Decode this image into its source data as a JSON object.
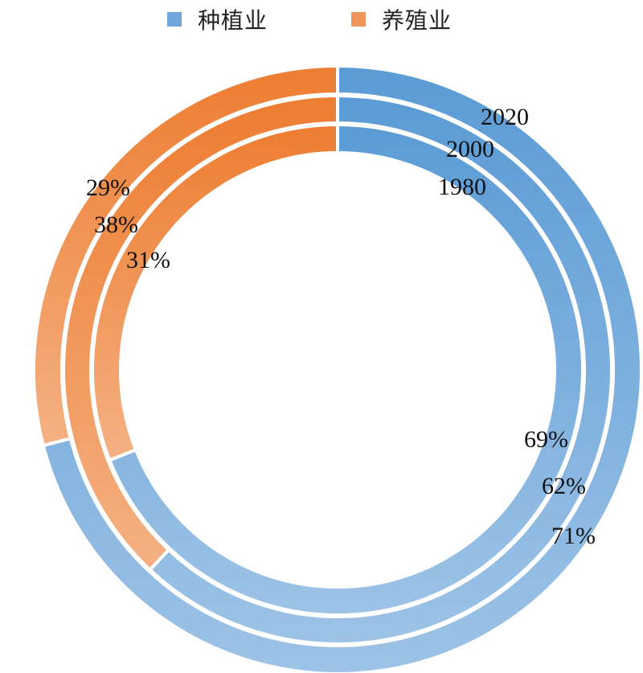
{
  "chart_data": {
    "type": "donut",
    "title": "",
    "legend": {
      "placement": "top",
      "entries": [
        "种植业",
        "养殖业"
      ]
    },
    "series": [
      {
        "name": "种植业",
        "color": "#5B9BD5",
        "colorLight": "#9DC3E6"
      },
      {
        "name": "养殖业",
        "color": "#ED7D31",
        "colorLight": "#F4B183"
      }
    ],
    "rings": [
      {
        "year": "1980",
        "values": [
          69,
          31
        ],
        "labels": [
          "69%",
          "31%"
        ]
      },
      {
        "year": "2000",
        "values": [
          62,
          38
        ],
        "labels": [
          "62%",
          "38%"
        ]
      },
      {
        "year": "2020",
        "values": [
          71,
          29
        ],
        "labels": [
          "71%",
          "29%"
        ]
      }
    ]
  }
}
